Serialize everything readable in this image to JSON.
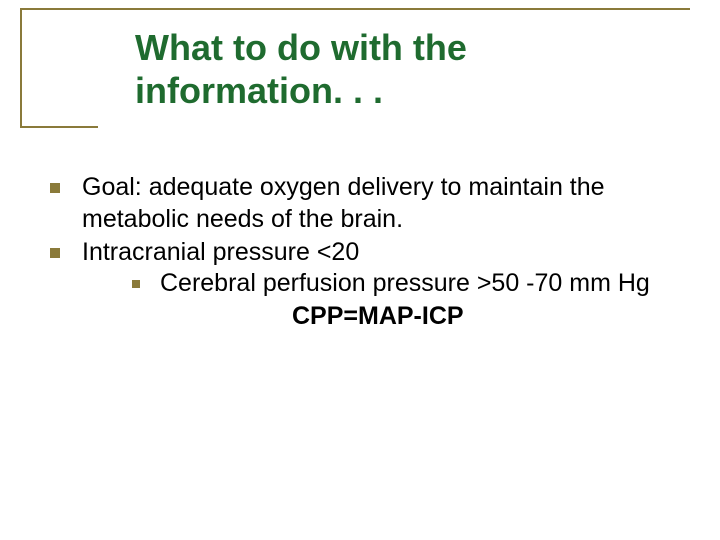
{
  "slide": {
    "title": "What to do with the information. . .",
    "title_color": "#1f6b2f",
    "title_fontsize": 36,
    "accent_color": "#8a7a3a",
    "background_color": "#ffffff",
    "body_fontsize": 25,
    "body_color": "#000000",
    "bullets": [
      {
        "text": "Goal:  adequate oxygen delivery to maintain the metabolic needs of the brain."
      },
      {
        "text": "Intracranial pressure <20",
        "sub": [
          {
            "text": "Cerebral perfusion pressure  >50 -70 mm Hg"
          }
        ]
      }
    ],
    "formula": "CPP=MAP-ICP"
  }
}
